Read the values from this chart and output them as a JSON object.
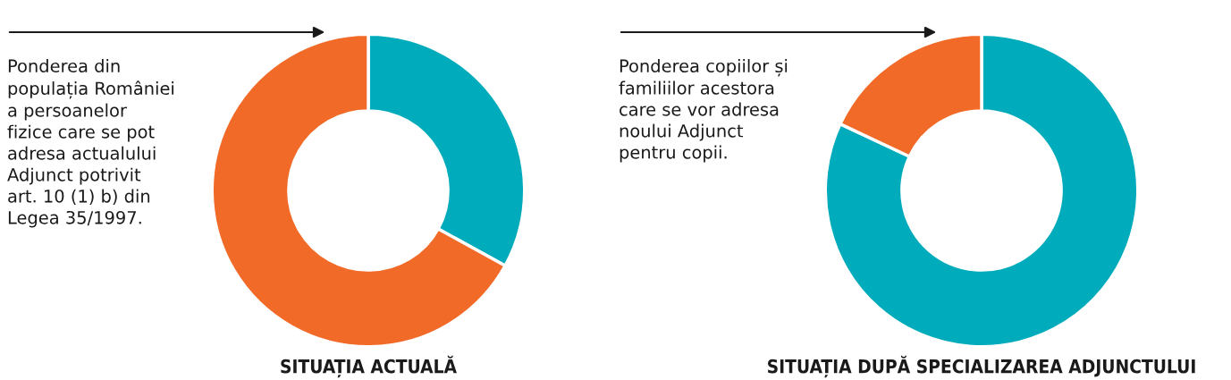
{
  "chart_data": [
    {
      "type": "donut",
      "title": "SITUAȚIA ACTUALĂ",
      "categories": [
        null,
        null
      ],
      "values": [
        33,
        67
      ],
      "colors": [
        "#00abbb",
        "#f26a27"
      ],
      "annotations": [
        "Ponderea din\npopulația României\na persoanelor\nfizice care se pot\nadresa actualului\nAdjunct potrivit\nart. 10 (1) b) din\nLegea 35/1997."
      ]
    },
    {
      "type": "donut",
      "title": "SITUAȚIA DUPĂ SPECIALIZAREA ADJUNCTULUI",
      "categories": [
        null,
        null
      ],
      "values": [
        82,
        18
      ],
      "colors": [
        "#00abbb",
        "#f26a27"
      ],
      "annotations": [
        "Ponderea copiilor și\nfamiliilor acestora\ncare se vor adresa\nnoului Adjunct\npentru copii."
      ]
    }
  ]
}
